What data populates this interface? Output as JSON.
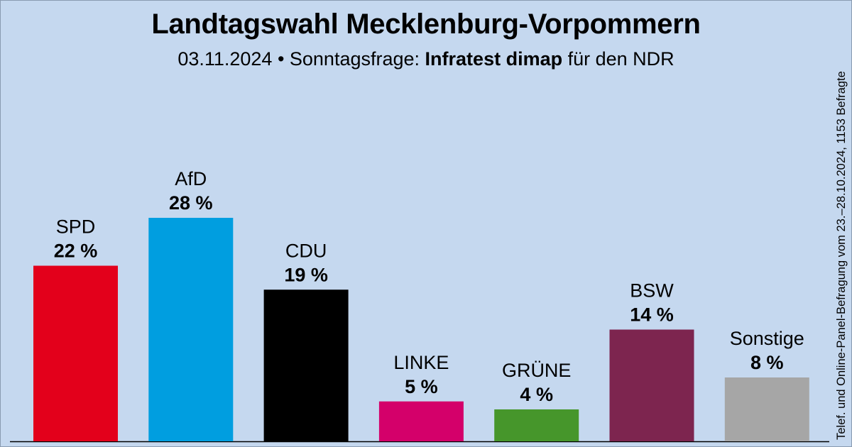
{
  "header": {
    "title": "Landtagswahl Mecklenburg-Vorpommern",
    "date_prefix": "03.11.2024 • Sonntagsfrage:",
    "institute": "Infratest dimap",
    "client": "für den NDR"
  },
  "side_note": "Telef. und Online-Panel-Befragung vom 23.–28.10.2024, 1153 Befragte",
  "chart_data": {
    "type": "bar",
    "title": "Landtagswahl Mecklenburg-Vorpommern",
    "categories": [
      "SPD",
      "AfD",
      "CDU",
      "LINKE",
      "GRÜNE",
      "BSW",
      "Sonstige"
    ],
    "values": [
      22,
      28,
      19,
      5,
      4,
      14,
      8
    ],
    "value_labels": [
      "22 %",
      "28 %",
      "19 %",
      "5 %",
      "4 %",
      "14 %",
      "8 %"
    ],
    "colors": [
      "#e3001b",
      "#009ee0",
      "#000000",
      "#d4006a",
      "#46962b",
      "#7d254f",
      "#a6a6a6"
    ],
    "unit": "%",
    "xlabel": "",
    "ylabel": "",
    "ylim": [
      0,
      28
    ],
    "grid": false,
    "legend": "none"
  }
}
